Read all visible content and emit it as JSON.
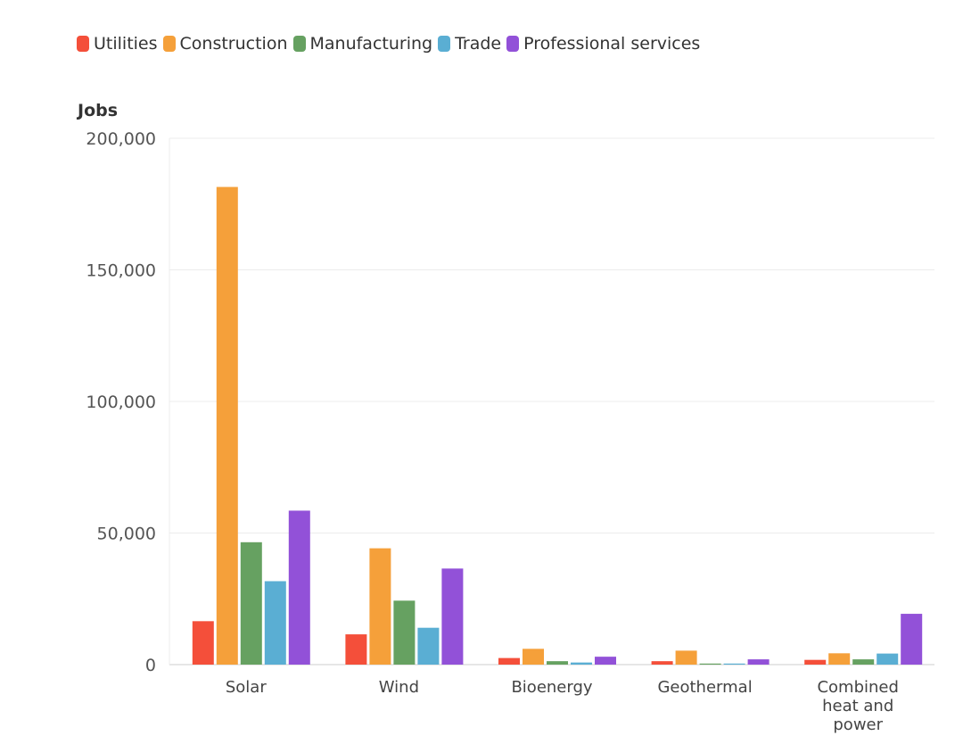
{
  "chart_data": {
    "type": "bar",
    "title": "",
    "xlabel": "",
    "ylabel": "Jobs",
    "ylim": [
      0,
      200000
    ],
    "yticks": [
      0,
      50000,
      100000,
      150000,
      200000
    ],
    "ytick_labels": [
      "0",
      "50,000",
      "100,000",
      "150,000",
      "200,000"
    ],
    "grid": true,
    "legend_position": "top-left",
    "categories": [
      "Solar",
      "Wind",
      "Bioenergy",
      "Geothermal",
      "Combined heat and power"
    ],
    "category_label_lines": [
      [
        "Solar"
      ],
      [
        "Wind"
      ],
      [
        "Bioenergy"
      ],
      [
        "Geothermal"
      ],
      [
        "Combined",
        "heat and",
        "power"
      ]
    ],
    "series": [
      {
        "name": "Utilities",
        "color": "#f44f3a",
        "values": [
          16500,
          11500,
          2500,
          1300,
          1800
        ]
      },
      {
        "name": "Construction",
        "color": "#f5a03a",
        "values": [
          181500,
          44200,
          6000,
          5300,
          4300
        ]
      },
      {
        "name": "Manufacturing",
        "color": "#66a161",
        "values": [
          46500,
          24300,
          1300,
          400,
          2000
        ]
      },
      {
        "name": "Trade",
        "color": "#5aaed3",
        "values": [
          31700,
          14000,
          800,
          400,
          4200
        ]
      },
      {
        "name": "Professional services",
        "color": "#9251d8",
        "values": [
          58500,
          36500,
          3000,
          2000,
          19300
        ]
      }
    ]
  }
}
